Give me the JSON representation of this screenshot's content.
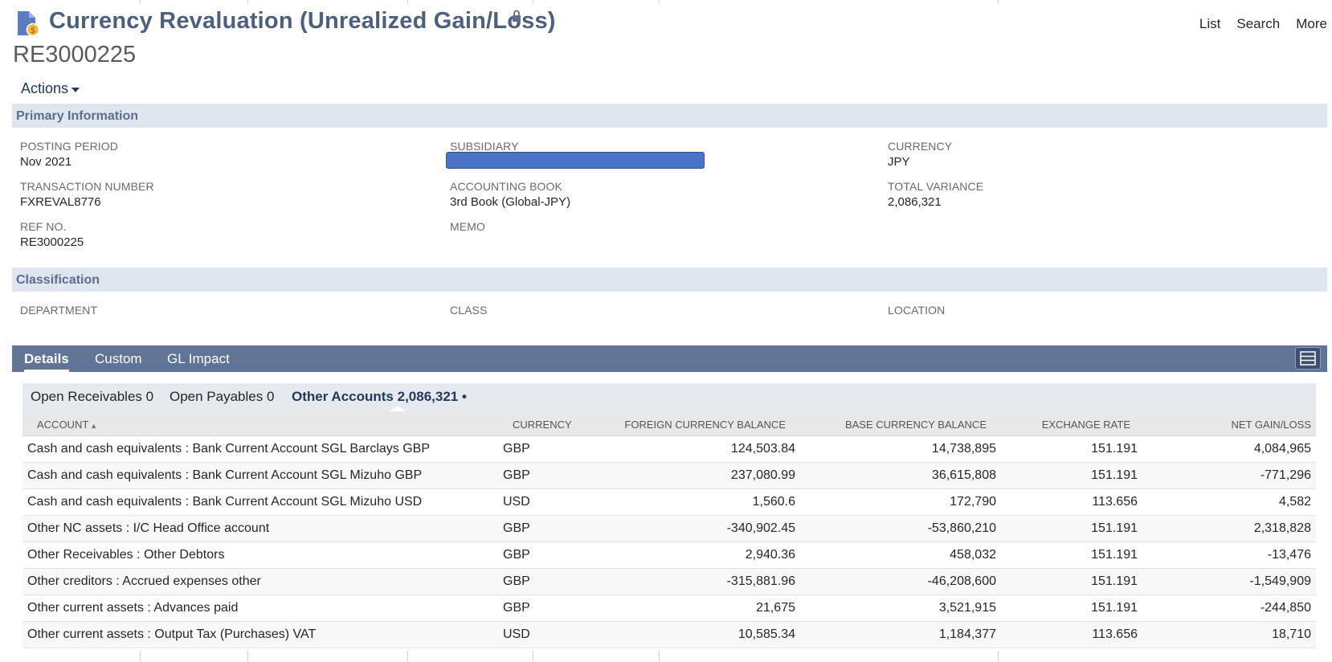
{
  "header": {
    "title": "Currency Revaluation (Unrealized Gain/Loss)",
    "record_id": "RE3000225",
    "nav": {
      "list": "List",
      "search": "Search",
      "more": "More"
    },
    "actions_label": "Actions",
    "icons": {
      "record": "document-coin-icon",
      "lock": "lock-icon"
    }
  },
  "primary": {
    "section_title": "Primary Information",
    "posting_period": {
      "label": "POSTING PERIOD",
      "value": "Nov 2021"
    },
    "subsidiary": {
      "label": "SUBSIDIARY",
      "value": ""
    },
    "currency": {
      "label": "CURRENCY",
      "value": "JPY"
    },
    "transaction_number": {
      "label": "TRANSACTION NUMBER",
      "value": "FXREVAL8776"
    },
    "accounting_book": {
      "label": "ACCOUNTING BOOK",
      "value": "3rd Book (Global-JPY)"
    },
    "total_variance": {
      "label": "TOTAL VARIANCE",
      "value": "2,086,321"
    },
    "ref_no": {
      "label": "REF NO.",
      "value": "RE3000225"
    },
    "memo": {
      "label": "MEMO",
      "value": ""
    }
  },
  "classification": {
    "section_title": "Classification",
    "department": {
      "label": "DEPARTMENT",
      "value": ""
    },
    "class": {
      "label": "CLASS",
      "value": ""
    },
    "location": {
      "label": "LOCATION",
      "value": ""
    }
  },
  "tabs": {
    "details": "Details",
    "custom": "Custom",
    "gl_impact": "GL Impact"
  },
  "subtabs": {
    "open_receivables": "Open Receivables 0",
    "open_payables": "Open Payables 0",
    "other_accounts": "Other Accounts 2,086,321 •"
  },
  "grid": {
    "columns": {
      "account": "ACCOUNT",
      "currency": "CURRENCY",
      "foreign_balance": "FOREIGN CURRENCY BALANCE",
      "base_balance": "BASE CURRENCY BALANCE",
      "exchange_rate": "EXCHANGE RATE",
      "net_gain_loss": "NET GAIN/LOSS"
    },
    "sort_indicator": "▲",
    "rows": [
      {
        "account": "Cash and cash equivalents : Bank Current Account SGL Barclays GBP",
        "currency": "GBP",
        "foreign": "124,503.84",
        "base": "14,738,895",
        "rate": "151.191",
        "net": "4,084,965"
      },
      {
        "account": "Cash and cash equivalents : Bank Current Account SGL Mizuho GBP",
        "currency": "GBP",
        "foreign": "237,080.99",
        "base": "36,615,808",
        "rate": "151.191",
        "net": "-771,296"
      },
      {
        "account": "Cash and cash equivalents : Bank Current Account SGL Mizuho USD",
        "currency": "USD",
        "foreign": "1,560.6",
        "base": "172,790",
        "rate": "113.656",
        "net": "4,582"
      },
      {
        "account": "Other NC assets : I/C Head Office account",
        "currency": "GBP",
        "foreign": "-340,902.45",
        "base": "-53,860,210",
        "rate": "151.191",
        "net": "2,318,828"
      },
      {
        "account": "Other Receivables : Other Debtors",
        "currency": "GBP",
        "foreign": "2,940.36",
        "base": "458,032",
        "rate": "151.191",
        "net": "-13,476"
      },
      {
        "account": "Other creditors : Accrued expenses other",
        "currency": "GBP",
        "foreign": "-315,881.96",
        "base": "-46,208,600",
        "rate": "151.191",
        "net": "-1,549,909"
      },
      {
        "account": "Other current assets : Advances paid",
        "currency": "GBP",
        "foreign": "21,675",
        "base": "3,521,915",
        "rate": "151.191",
        "net": "-244,850"
      },
      {
        "account": "Other current assets : Output Tax (Purchases) VAT",
        "currency": "USD",
        "foreign": "10,585.34",
        "base": "1,184,377",
        "rate": "113.656",
        "net": "18,710"
      }
    ]
  },
  "colors": {
    "title": "#4d5f79",
    "section_bg": "#e0e6ef",
    "tab_bar": "#607596",
    "redaction": "#4a72c6"
  }
}
